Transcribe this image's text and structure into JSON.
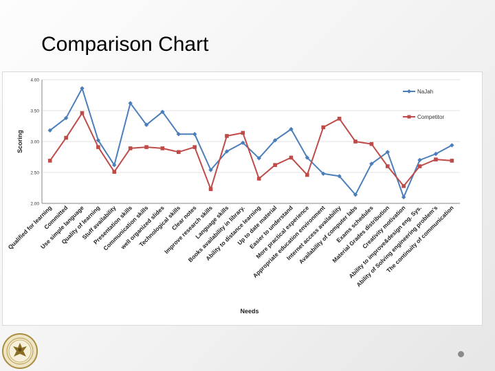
{
  "slide": {
    "title": "Comparison Chart"
  },
  "colors": {
    "series1": "#4a7ebb",
    "series2": "#be4b48",
    "grid": "#d9d9d9",
    "axis": "#868686"
  },
  "chart_data": {
    "type": "line",
    "title": "",
    "xlabel": "Needs",
    "ylabel": "Scoring",
    "ylim": [
      2.0,
      4.0
    ],
    "yticks": [
      "2.00",
      "2.50",
      "3.00",
      "3.50",
      "4.00"
    ],
    "legend_position": "right",
    "categories": [
      "Qualified for learning",
      "Committed",
      "Use simple language",
      "Quality of learning",
      "Stuff availability",
      "Presentation skills",
      "Communication skills",
      "well organized slides",
      "Technological skills",
      "Clear notes",
      "Improve research skills",
      "Language skills",
      "Books availability in library.",
      "Ability to distance learning",
      "Up to date material",
      "Easier to understand",
      "More practical experience",
      "Appropriate education environment",
      "Internet access availability",
      "Availability of computer labs",
      "Exams schedules",
      "Material Grades distribution",
      "Creativity motivation",
      "Ability to improve&design eng. Sys.",
      "Ability of Solving engineering problem's",
      "The continuity of communication"
    ],
    "series": [
      {
        "name": "NaJah",
        "marker": "diamond",
        "values": [
          3.18,
          3.38,
          3.86,
          3.02,
          2.62,
          3.62,
          3.27,
          3.48,
          3.12,
          3.12,
          2.54,
          2.84,
          2.98,
          2.73,
          3.02,
          3.2,
          2.74,
          2.48,
          2.44,
          2.14,
          2.64,
          2.83,
          2.1,
          2.7,
          2.8,
          2.94
        ]
      },
      {
        "name": "Competitor",
        "marker": "square",
        "values": [
          2.69,
          3.06,
          3.46,
          2.91,
          2.51,
          2.89,
          2.91,
          2.89,
          2.83,
          2.91,
          2.23,
          3.09,
          3.14,
          2.4,
          2.62,
          2.74,
          2.46,
          3.23,
          3.37,
          3.0,
          2.96,
          2.6,
          2.28,
          2.6,
          2.71,
          2.69
        ]
      }
    ]
  }
}
